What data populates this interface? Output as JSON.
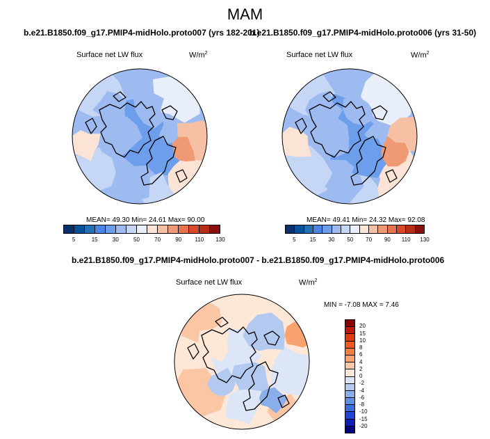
{
  "season": "MAM",
  "panels": [
    {
      "title": "b.e21.B1850.f09_g17.PMIP4-midHolo.proto007 (yrs 182-201)",
      "variable": "Surface net LW flux",
      "units_base": "W/m",
      "units_exp": "2",
      "stats_text": "MEAN=  49.30  Min=  24.61  Max=  90.00"
    },
    {
      "title": "b.e21.B1850.f09_g17.PMIP4-midHolo.proto006 (yrs 31-50)",
      "variable": "Surface net LW flux",
      "units_base": "W/m",
      "units_exp": "2",
      "stats_text": "MEAN=  49.41  Min=  24.32  Max=  92.08"
    },
    {
      "title": "b.e21.B1850.f09_g17.PMIP4-midHolo.proto007 - b.e21.B1850.f09_g17.PMIP4-midHolo.proto006",
      "variable": "Surface net LW flux",
      "units_base": "W/m",
      "units_exp": "2",
      "stats_text": "MIN =  -7.08 MAX =   7.46"
    }
  ],
  "chart_data": [
    {
      "type": "heatmap",
      "projection": "north polar stereographic",
      "colorbar": {
        "orientation": "horizontal",
        "labels": [
          "5",
          "15",
          "30",
          "50",
          "70",
          "90",
          "110",
          "130"
        ],
        "colors": [
          "#08306b",
          "#08519c",
          "#2171b5",
          "#4a86e8",
          "#6d9eeb",
          "#9dbbf0",
          "#c6d7f5",
          "#e8eefa",
          "#fbe3d6",
          "#f6c0a5",
          "#f09a75",
          "#e9724c",
          "#d94a2a",
          "#b82d18",
          "#8b0f0a"
        ]
      }
    },
    {
      "type": "heatmap",
      "projection": "north polar stereographic",
      "colorbar": {
        "orientation": "horizontal",
        "labels": [
          "5",
          "15",
          "30",
          "50",
          "70",
          "90",
          "110",
          "130"
        ],
        "colors": [
          "#08306b",
          "#08519c",
          "#2171b5",
          "#4a86e8",
          "#6d9eeb",
          "#9dbbf0",
          "#c6d7f5",
          "#e8eefa",
          "#fbe3d6",
          "#f6c0a5",
          "#f09a75",
          "#e9724c",
          "#d94a2a",
          "#b82d18",
          "#8b0f0a"
        ]
      }
    },
    {
      "type": "heatmap",
      "projection": "north polar stereographic",
      "colorbar": {
        "orientation": "vertical",
        "labels": [
          "20",
          "15",
          "10",
          "8",
          "6",
          "4",
          "2",
          "0",
          "-2",
          "-4",
          "-6",
          "-8",
          "-10",
          "-15",
          "-20"
        ],
        "colors": [
          "#8b0000",
          "#c0180c",
          "#e23a10",
          "#f05a1e",
          "#f57e45",
          "#f8a370",
          "#fbc6a3",
          "#fde8d8",
          "#dce6f7",
          "#b3c9f0",
          "#8aaeea",
          "#5f8fe3",
          "#3a6ee0",
          "#1f45d6",
          "#0d1fb8",
          "#000080"
        ]
      }
    }
  ]
}
